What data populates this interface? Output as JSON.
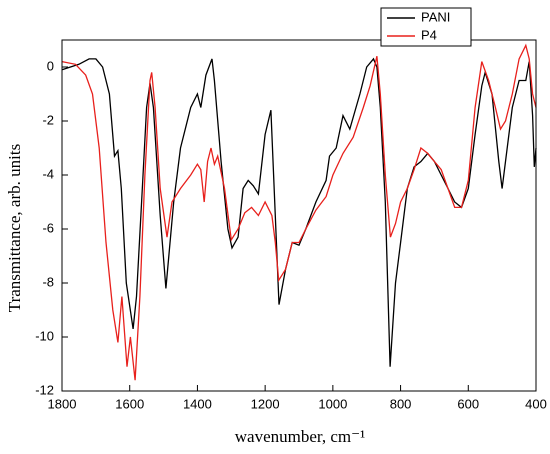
{
  "chart_data": {
    "type": "line",
    "xlabel": "wavenumber, cm⁻¹",
    "ylabel": "Transmittance, arb. units",
    "xlim": [
      1800,
      400
    ],
    "ylim": [
      -12,
      1
    ],
    "xticks": [
      1800,
      1600,
      1400,
      1200,
      1000,
      800,
      600,
      400
    ],
    "yticks": [
      0,
      -2,
      -4,
      -6,
      -8,
      -10,
      -12
    ],
    "legend": "top-right",
    "series": [
      {
        "name": "PANI",
        "color": "#000000",
        "x": [
          1800,
          1750,
          1720,
          1700,
          1680,
          1660,
          1645,
          1635,
          1625,
          1610,
          1590,
          1580,
          1565,
          1550,
          1540,
          1530,
          1510,
          1493,
          1470,
          1450,
          1420,
          1400,
          1390,
          1375,
          1357,
          1350,
          1330,
          1310,
          1298,
          1280,
          1265,
          1250,
          1235,
          1220,
          1200,
          1183,
          1175,
          1159,
          1140,
          1120,
          1100,
          1080,
          1050,
          1020,
          1010,
          990,
          970,
          950,
          920,
          900,
          880,
          870,
          860,
          845,
          831,
          815,
          800,
          780,
          760,
          740,
          720,
          700,
          680,
          660,
          640,
          620,
          600,
          580,
          560,
          550,
          530,
          510,
          500,
          490,
          470,
          450,
          430,
          420,
          410,
          405,
          400
        ],
        "values": [
          -0.1,
          0.1,
          0.3,
          0.3,
          0.0,
          -1.0,
          -3.3,
          -3.1,
          -4.5,
          -8.0,
          -9.7,
          -8.5,
          -5.0,
          -1.5,
          -0.6,
          -1.5,
          -5.5,
          -8.2,
          -5.0,
          -3.0,
          -1.5,
          -1.0,
          -1.5,
          -0.3,
          0.3,
          -0.5,
          -3.5,
          -6.0,
          -6.7,
          -6.3,
          -4.5,
          -4.2,
          -4.4,
          -4.7,
          -2.5,
          -1.6,
          -4.0,
          -8.8,
          -7.5,
          -6.5,
          -6.6,
          -6.0,
          -5.0,
          -4.2,
          -3.3,
          -3.0,
          -1.8,
          -2.3,
          -1.0,
          0.0,
          0.3,
          0.0,
          -1.5,
          -5.0,
          -11.1,
          -8.0,
          -6.5,
          -4.5,
          -3.7,
          -3.5,
          -3.2,
          -3.5,
          -4.0,
          -4.5,
          -5.0,
          -5.2,
          -4.5,
          -2.5,
          -0.7,
          -0.2,
          -1.0,
          -3.5,
          -4.5,
          -3.5,
          -1.5,
          -0.5,
          -0.5,
          0.2,
          -1.8,
          -3.7,
          -3.0
        ]
      },
      {
        "name": "P4",
        "color": "#e8201c",
        "x": [
          1800,
          1760,
          1730,
          1710,
          1690,
          1670,
          1650,
          1635,
          1623,
          1608,
          1598,
          1584,
          1570,
          1555,
          1540,
          1535,
          1525,
          1510,
          1490,
          1475,
          1450,
          1420,
          1400,
          1390,
          1380,
          1370,
          1360,
          1350,
          1340,
          1320,
          1300,
          1280,
          1260,
          1240,
          1220,
          1200,
          1180,
          1170,
          1160,
          1140,
          1120,
          1100,
          1080,
          1050,
          1020,
          1000,
          970,
          940,
          910,
          890,
          870,
          860,
          845,
          830,
          815,
          800,
          780,
          760,
          740,
          720,
          700,
          680,
          660,
          640,
          620,
          600,
          580,
          560,
          540,
          520,
          505,
          490,
          470,
          450,
          430,
          420,
          410,
          400
        ],
        "values": [
          0.2,
          0.1,
          -0.3,
          -1.0,
          -3.0,
          -6.5,
          -9.0,
          -10.2,
          -8.5,
          -11.1,
          -10.0,
          -11.6,
          -8.5,
          -4.0,
          -0.5,
          -0.2,
          -1.5,
          -4.5,
          -6.3,
          -5.0,
          -4.5,
          -4.0,
          -3.6,
          -3.8,
          -5.0,
          -3.5,
          -3.0,
          -3.6,
          -3.3,
          -4.5,
          -6.4,
          -6.0,
          -5.4,
          -5.2,
          -5.5,
          -5.0,
          -5.5,
          -6.5,
          -7.9,
          -7.5,
          -6.5,
          -6.5,
          -6.0,
          -5.3,
          -4.8,
          -4.0,
          -3.2,
          -2.6,
          -1.5,
          -0.7,
          0.4,
          -1.0,
          -4.0,
          -6.3,
          -5.8,
          -5.0,
          -4.5,
          -3.8,
          -3.0,
          -3.2,
          -3.5,
          -3.8,
          -4.5,
          -5.2,
          -5.2,
          -4.2,
          -1.5,
          0.2,
          -0.5,
          -1.5,
          -2.3,
          -2.0,
          -1.0,
          0.3,
          0.8,
          0.3,
          -1.0,
          -1.5
        ]
      }
    ]
  }
}
